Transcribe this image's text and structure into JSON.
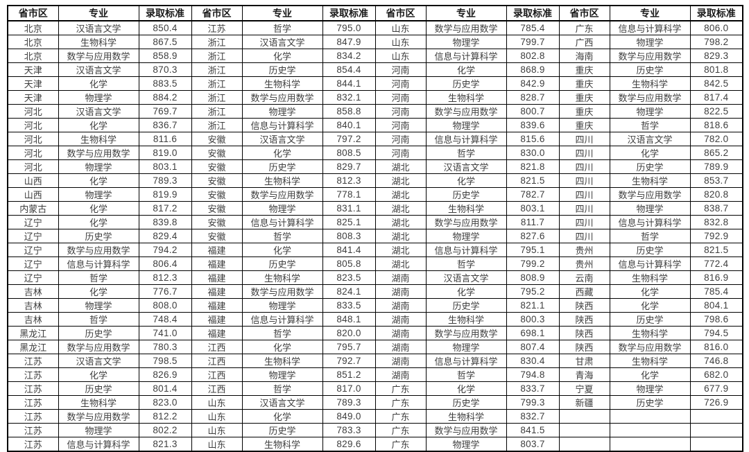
{
  "table": {
    "column_headers": [
      "省市区",
      "专业",
      "录取标准"
    ],
    "header_repeat": 4,
    "row_count": 31,
    "colors": {
      "border": "#000000",
      "header_text": "#1a1a1a",
      "body_text": "#3d3d3d",
      "background": "#ffffff"
    },
    "groups": [
      {
        "rows": [
          [
            "北京",
            "汉语言文学",
            "850.4"
          ],
          [
            "北京",
            "生物科学",
            "867.5"
          ],
          [
            "北京",
            "数学与应用数学",
            "858.9"
          ],
          [
            "天津",
            "汉语言文学",
            "870.3"
          ],
          [
            "天津",
            "化学",
            "883.5"
          ],
          [
            "天津",
            "物理学",
            "884.2"
          ],
          [
            "河北",
            "汉语言文学",
            "769.7"
          ],
          [
            "河北",
            "化学",
            "836.7"
          ],
          [
            "河北",
            "生物科学",
            "811.6"
          ],
          [
            "河北",
            "数学与应用数学",
            "819.0"
          ],
          [
            "河北",
            "物理学",
            "803.1"
          ],
          [
            "山西",
            "化学",
            "789.3"
          ],
          [
            "山西",
            "物理学",
            "819.9"
          ],
          [
            "内蒙古",
            "化学",
            "817.2"
          ],
          [
            "辽宁",
            "化学",
            "839.8"
          ],
          [
            "辽宁",
            "历史学",
            "829.4"
          ],
          [
            "辽宁",
            "数学与应用数学",
            "794.2"
          ],
          [
            "辽宁",
            "信息与计算科学",
            "806.4"
          ],
          [
            "辽宁",
            "哲学",
            "812.3"
          ],
          [
            "吉林",
            "化学",
            "776.7"
          ],
          [
            "吉林",
            "物理学",
            "808.0"
          ],
          [
            "吉林",
            "哲学",
            "748.4"
          ],
          [
            "黑龙江",
            "历史学",
            "741.0"
          ],
          [
            "黑龙江",
            "数学与应用数学",
            "780.3"
          ],
          [
            "江苏",
            "汉语言文学",
            "798.5"
          ],
          [
            "江苏",
            "化学",
            "826.9"
          ],
          [
            "江苏",
            "历史学",
            "801.4"
          ],
          [
            "江苏",
            "生物科学",
            "823.0"
          ],
          [
            "江苏",
            "数学与应用数学",
            "812.2"
          ],
          [
            "江苏",
            "物理学",
            "802.2"
          ],
          [
            "江苏",
            "信息与计算科学",
            "821.3"
          ]
        ]
      },
      {
        "rows": [
          [
            "江苏",
            "哲学",
            "795.0"
          ],
          [
            "浙江",
            "汉语言文学",
            "847.9"
          ],
          [
            "浙江",
            "化学",
            "834.2"
          ],
          [
            "浙江",
            "历史学",
            "854.4"
          ],
          [
            "浙江",
            "生物科学",
            "844.1"
          ],
          [
            "浙江",
            "数学与应用数学",
            "832.1"
          ],
          [
            "浙江",
            "物理学",
            "858.8"
          ],
          [
            "浙江",
            "信息与计算科学",
            "840.1"
          ],
          [
            "安徽",
            "汉语言文学",
            "797.2"
          ],
          [
            "安徽",
            "化学",
            "808.5"
          ],
          [
            "安徽",
            "历史学",
            "829.7"
          ],
          [
            "安徽",
            "生物科学",
            "812.3"
          ],
          [
            "安徽",
            "数学与应用数学",
            "778.1"
          ],
          [
            "安徽",
            "物理学",
            "831.1"
          ],
          [
            "安徽",
            "信息与计算科学",
            "825.1"
          ],
          [
            "安徽",
            "哲学",
            "808.3"
          ],
          [
            "福建",
            "化学",
            "841.4"
          ],
          [
            "福建",
            "历史学",
            "805.8"
          ],
          [
            "福建",
            "生物科学",
            "823.5"
          ],
          [
            "福建",
            "数学与应用数学",
            "824.1"
          ],
          [
            "福建",
            "物理学",
            "833.5"
          ],
          [
            "福建",
            "信息与计算科学",
            "848.1"
          ],
          [
            "福建",
            "哲学",
            "820.0"
          ],
          [
            "江西",
            "化学",
            "795.7"
          ],
          [
            "江西",
            "生物科学",
            "792.7"
          ],
          [
            "江西",
            "物理学",
            "851.2"
          ],
          [
            "江西",
            "哲学",
            "817.0"
          ],
          [
            "山东",
            "汉语言文学",
            "789.3"
          ],
          [
            "山东",
            "化学",
            "849.0"
          ],
          [
            "山东",
            "历史学",
            "783.3"
          ],
          [
            "山东",
            "生物科学",
            "829.6"
          ]
        ]
      },
      {
        "rows": [
          [
            "山东",
            "数学与应用数学",
            "785.4"
          ],
          [
            "山东",
            "物理学",
            "799.7"
          ],
          [
            "山东",
            "信息与计算科学",
            "802.8"
          ],
          [
            "河南",
            "化学",
            "868.9"
          ],
          [
            "河南",
            "历史学",
            "842.9"
          ],
          [
            "河南",
            "生物科学",
            "828.7"
          ],
          [
            "河南",
            "数学与应用数学",
            "800.7"
          ],
          [
            "河南",
            "物理学",
            "839.6"
          ],
          [
            "河南",
            "信息与计算科学",
            "815.6"
          ],
          [
            "河南",
            "哲学",
            "830.0"
          ],
          [
            "湖北",
            "汉语言文学",
            "821.8"
          ],
          [
            "湖北",
            "化学",
            "821.5"
          ],
          [
            "湖北",
            "历史学",
            "782.7"
          ],
          [
            "湖北",
            "生物科学",
            "803.1"
          ],
          [
            "湖北",
            "数学与应用数学",
            "811.7"
          ],
          [
            "湖北",
            "物理学",
            "827.6"
          ],
          [
            "湖北",
            "信息与计算科学",
            "795.1"
          ],
          [
            "湖北",
            "哲学",
            "799.2"
          ],
          [
            "湖南",
            "汉语言文学",
            "808.9"
          ],
          [
            "湖南",
            "化学",
            "795.2"
          ],
          [
            "湖南",
            "历史学",
            "821.1"
          ],
          [
            "湖南",
            "生物科学",
            "800.3"
          ],
          [
            "湖南",
            "数学与应用数学",
            "698.1"
          ],
          [
            "湖南",
            "物理学",
            "807.4"
          ],
          [
            "湖南",
            "信息与计算科学",
            "830.4"
          ],
          [
            "湖南",
            "哲学",
            "794.8"
          ],
          [
            "广东",
            "化学",
            "833.7"
          ],
          [
            "广东",
            "历史学",
            "799.3"
          ],
          [
            "广东",
            "生物科学",
            "832.7"
          ],
          [
            "广东",
            "数学与应用数学",
            "841.5"
          ],
          [
            "广东",
            "物理学",
            "803.7"
          ]
        ]
      },
      {
        "rows": [
          [
            "广东",
            "信息与计算科学",
            "806.0"
          ],
          [
            "广西",
            "物理学",
            "798.2"
          ],
          [
            "海南",
            "数学与应用数学",
            "829.3"
          ],
          [
            "重庆",
            "历史学",
            "801.8"
          ],
          [
            "重庆",
            "生物科学",
            "842.5"
          ],
          [
            "重庆",
            "数学与应用数学",
            "817.4"
          ],
          [
            "重庆",
            "物理学",
            "822.5"
          ],
          [
            "重庆",
            "哲学",
            "818.6"
          ],
          [
            "四川",
            "汉语言文学",
            "782.0"
          ],
          [
            "四川",
            "化学",
            "865.2"
          ],
          [
            "四川",
            "历史学",
            "789.9"
          ],
          [
            "四川",
            "生物科学",
            "853.7"
          ],
          [
            "四川",
            "数学与应用数学",
            "820.8"
          ],
          [
            "四川",
            "物理学",
            "838.7"
          ],
          [
            "四川",
            "信息与计算科学",
            "832.8"
          ],
          [
            "四川",
            "哲学",
            "792.9"
          ],
          [
            "贵州",
            "历史学",
            "821.5"
          ],
          [
            "贵州",
            "信息与计算科学",
            "772.4"
          ],
          [
            "云南",
            "生物科学",
            "816.9"
          ],
          [
            "西藏",
            "化学",
            "785.4"
          ],
          [
            "陕西",
            "化学",
            "804.1"
          ],
          [
            "陕西",
            "历史学",
            "798.6"
          ],
          [
            "陕西",
            "生物科学",
            "794.5"
          ],
          [
            "陕西",
            "数学与应用数学",
            "816.0"
          ],
          [
            "甘肃",
            "生物科学",
            "746.8"
          ],
          [
            "青海",
            "化学",
            "682.0"
          ],
          [
            "宁夏",
            "物理学",
            "677.9"
          ],
          [
            "新疆",
            "历史学",
            "726.9"
          ],
          [
            "",
            "",
            ""
          ],
          [
            "",
            "",
            ""
          ],
          [
            "",
            "",
            ""
          ]
        ]
      }
    ]
  }
}
